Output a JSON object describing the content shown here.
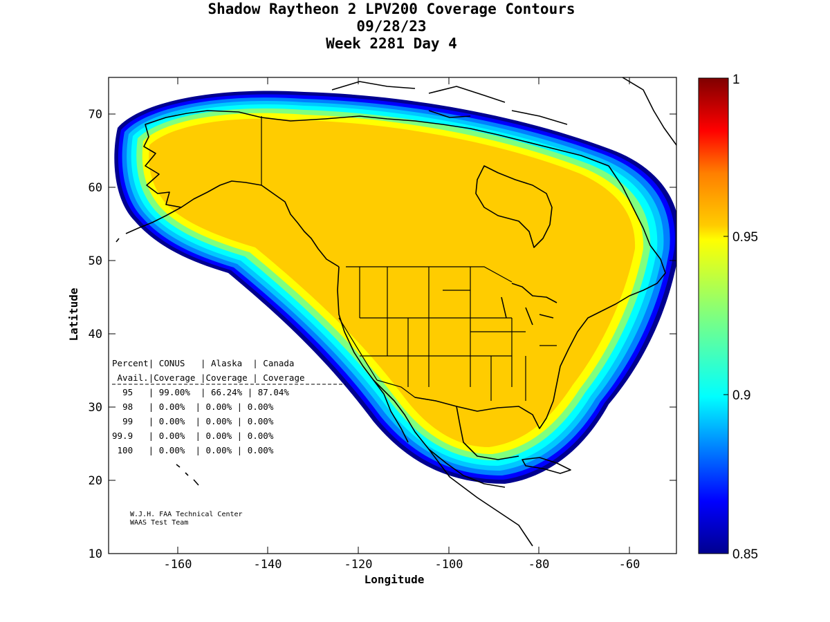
{
  "title": {
    "line1": "Shadow Raytheon 2 LPV200 Coverage Contours",
    "line2": "09/28/23",
    "line3": "Week 2281 Day 4"
  },
  "map": {
    "xlabel": "Longitude",
    "ylabel": "Latitude",
    "xlim": [
      -175,
      -50
    ],
    "ylim": [
      10,
      75
    ],
    "x_ticks": [
      "-160",
      "-140",
      "-120",
      "-100",
      "-80",
      "-60"
    ],
    "y_ticks": [
      "10",
      "20",
      "30",
      "40",
      "50",
      "60",
      "70"
    ]
  },
  "colorbar": {
    "range": [
      0.85,
      1.0
    ],
    "tick_labels": [
      "1",
      "0.95",
      "0.9",
      "0.85"
    ],
    "colors": [
      "#00008f",
      "#0000ff",
      "#007fff",
      "#00ffff",
      "#7fff7f",
      "#ffff00",
      "#ffcc00",
      "#ff7f00",
      "#ff0000",
      "#7f0000"
    ]
  },
  "coverage_fill_color": "#ffcc00",
  "coverage_table": {
    "header1": [
      "Percent",
      "CONUS",
      "Alaska",
      "Canada"
    ],
    "header2": [
      "Avail.",
      "Coverage",
      "Coverage",
      "Coverage"
    ],
    "rows": [
      [
        "95",
        "99.00%",
        "66.24%",
        "87.04%"
      ],
      [
        "98",
        "0.00%",
        "0.00%",
        "0.00%"
      ],
      [
        "99",
        "0.00%",
        "0.00%",
        "0.00%"
      ],
      [
        "99.9",
        "0.00%",
        "0.00%",
        "0.00%"
      ],
      [
        "100",
        "0.00%",
        "0.00%",
        "0.00%"
      ]
    ]
  },
  "credit": {
    "line1": "W.J.H. FAA Technical Center",
    "line2": "WAAS Test Team"
  }
}
